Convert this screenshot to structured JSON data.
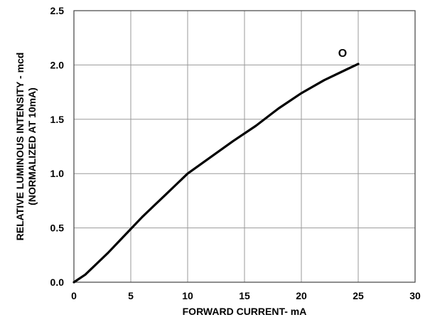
{
  "chart_data": {
    "type": "line",
    "title": "",
    "xlabel": "FORWARD CURRENT- mA",
    "ylabel_line1": "RELATIVE LUMINOUS INTENSITY - mcd",
    "ylabel_line2": "(NORMALIZED AT 10mA)",
    "xlim": [
      0,
      30
    ],
    "ylim": [
      0,
      2.5
    ],
    "xticks": [
      0,
      5,
      10,
      15,
      20,
      25,
      30
    ],
    "xtick_labels": [
      "0",
      "5",
      "10",
      "15",
      "20",
      "25",
      "30"
    ],
    "yticks": [
      0,
      0.5,
      1.0,
      1.5,
      2.0,
      2.5
    ],
    "ytick_labels": [
      "0.0",
      "0.5",
      "1.0",
      "1.5",
      "2.0",
      "2.5"
    ],
    "grid": true,
    "series": [
      {
        "label": "O",
        "x": [
          0,
          1,
          2,
          3,
          4,
          5,
          6,
          7,
          8,
          9,
          10,
          12,
          14,
          16,
          18,
          20,
          22,
          24,
          25
        ],
        "y": [
          0,
          0.07,
          0.17,
          0.27,
          0.38,
          0.49,
          0.6,
          0.7,
          0.8,
          0.9,
          1.0,
          1.15,
          1.3,
          1.44,
          1.6,
          1.74,
          1.86,
          1.96,
          2.01
        ]
      }
    ]
  }
}
